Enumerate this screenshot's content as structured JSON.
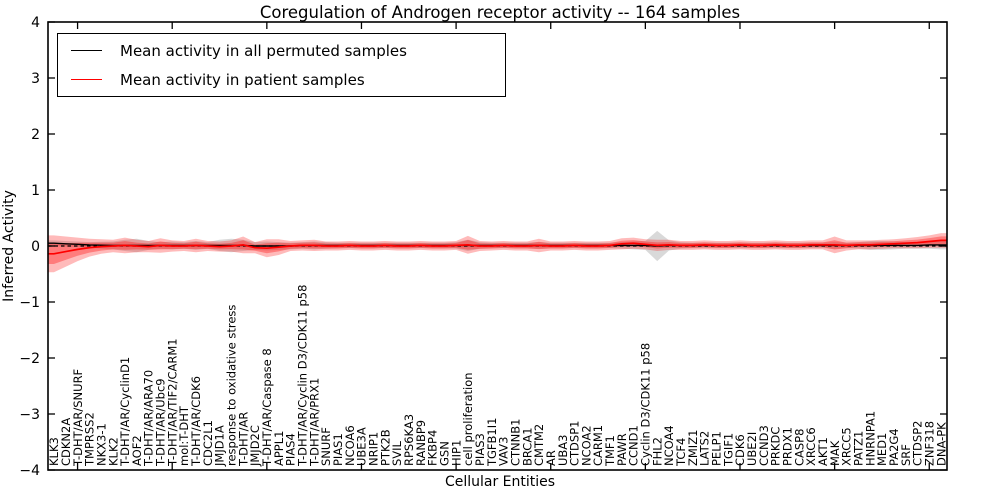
{
  "title": "Coregulation of Androgen receptor activity -- 164 samples",
  "legend": {
    "items": [
      {
        "label": "Mean activity in all permuted samples",
        "color": "#000000"
      },
      {
        "label": "Mean activity in patient samples",
        "color": "#ff0000"
      }
    ]
  },
  "axes": {
    "ylabel": "Inferred Activity",
    "xlabel": "Cellular Entities",
    "yticks": [
      4,
      3,
      2,
      1,
      0,
      -1,
      -2,
      -3,
      -4
    ],
    "ylim": [
      -4,
      4
    ]
  },
  "chart_data": {
    "type": "line",
    "title": "Coregulation of Androgen receptor activity -- 164 samples",
    "xlabel": "Cellular Entities",
    "ylabel": "Inferred Activity",
    "ylim": [
      -4,
      4
    ],
    "grid": false,
    "legend_position": "upper left",
    "zero_line": {
      "style": "dashed",
      "color": "#000000",
      "y": 0
    },
    "categories": [
      "KLK3",
      "CDKN2A",
      "T-DHT/AR/SNURF",
      "TMPRSS2",
      "NKX3-1",
      "KLK2",
      "T-DHT/AR/CyclinD1",
      "AOF2",
      "T-DHT/AR/ARA70",
      "T-DHT/AR/Ubc9",
      "T-DHT/AR/TIF2/CARM1",
      "mol:T-DHT",
      "T-DHT/AR/CDK6",
      "CDC2L1",
      "JMJD1A",
      "response to oxidative stress",
      "T-DHT/AR",
      "JMJD2C",
      "T-DHT/AR/Caspase 8",
      "APPL1",
      "PIAS4",
      "T-DHT/AR/Cyclin D3/CDK11 p58",
      "T-DHT/AR/PRX1",
      "SNURF",
      "PIAS1",
      "NCOA6",
      "UBE3A",
      "NRIP1",
      "PTK2B",
      "SVIL",
      "RPS6KA3",
      "RANBP9",
      "FKBP4",
      "GSN",
      "HIP1",
      "cell proliferation",
      "PIAS3",
      "TGFB1I1",
      "VAV3",
      "CTNNB1",
      "BRCA1",
      "CMTM2",
      "AR",
      "UBA3",
      "CTDSP1",
      "NCOA2",
      "CARM1",
      "TMF1",
      "PAWR",
      "CCND1",
      "Cyclin D3/CDK11 p58",
      "FHL2",
      "NCOA4",
      "TCF4",
      "ZMIZ1",
      "LATS2",
      "PELP1",
      "TGIF1",
      "CDK6",
      "UBE2I",
      "CCND3",
      "PRKDC",
      "PRDX1",
      "CASP8",
      "XRCC6",
      "AKT1",
      "MAK",
      "XRCC5",
      "PATZ1",
      "HNRNPA1",
      "MED1",
      "PA2G4",
      "SRF",
      "CTDSP2",
      "ZNF318",
      "DNA-PK"
    ],
    "series": [
      {
        "name": "Mean activity in all permuted samples",
        "color": "#000000",
        "values": [
          0.05,
          0.04,
          0.03,
          0.02,
          0.015,
          0.01,
          0.01,
          0.01,
          0.01,
          0.01,
          0.01,
          0.01,
          0.01,
          0.01,
          0.01,
          0.01,
          0.01,
          0.0,
          0.0,
          0.0,
          0.0,
          0.01,
          0.01,
          0.01,
          0.01,
          0.01,
          0.01,
          0.01,
          0.01,
          0.01,
          0.01,
          0.01,
          0.01,
          0.01,
          0.01,
          0.01,
          0.01,
          0.01,
          0.01,
          0.01,
          0.01,
          0.01,
          0.01,
          0.01,
          0.01,
          0.01,
          0.01,
          0.01,
          0.01,
          0.01,
          0.01,
          0.0,
          0.01,
          0.01,
          0.01,
          0.01,
          0.01,
          0.01,
          0.01,
          0.01,
          0.01,
          0.01,
          0.01,
          0.01,
          0.01,
          0.01,
          0.01,
          0.01,
          0.01,
          0.01,
          0.01,
          0.01,
          0.01,
          0.01,
          0.02,
          0.02
        ],
        "band": {
          "name": "permuted-samples-spread",
          "color": "#8a8a8a",
          "opacity": 0.32,
          "half_widths": [
            0.05,
            0.05,
            0.05,
            0.05,
            0.06,
            0.07,
            0.1,
            0.12,
            0.08,
            0.06,
            0.07,
            0.06,
            0.08,
            0.06,
            0.1,
            0.12,
            0.1,
            0.07,
            0.08,
            0.07,
            0.06,
            0.06,
            0.07,
            0.06,
            0.05,
            0.05,
            0.05,
            0.05,
            0.05,
            0.05,
            0.05,
            0.05,
            0.05,
            0.05,
            0.06,
            0.1,
            0.06,
            0.05,
            0.05,
            0.05,
            0.05,
            0.06,
            0.05,
            0.05,
            0.05,
            0.05,
            0.05,
            0.05,
            0.06,
            0.07,
            0.08,
            0.27,
            0.09,
            0.06,
            0.05,
            0.05,
            0.05,
            0.05,
            0.05,
            0.05,
            0.05,
            0.05,
            0.05,
            0.05,
            0.05,
            0.05,
            0.06,
            0.05,
            0.06,
            0.08,
            0.08,
            0.07,
            0.06,
            0.06,
            0.07,
            0.08
          ]
        }
      },
      {
        "name": "Mean activity in patient samples",
        "color": "#ff0000",
        "values": [
          -0.14,
          -0.1,
          -0.06,
          -0.03,
          -0.01,
          0.0,
          0.01,
          0.0,
          -0.01,
          0.01,
          0.0,
          0.0,
          0.01,
          0.0,
          -0.01,
          0.0,
          0.02,
          -0.03,
          -0.04,
          -0.02,
          0.0,
          0.01,
          0.01,
          0.0,
          0.0,
          0.01,
          0.0,
          0.0,
          0.01,
          0.0,
          0.0,
          0.01,
          0.0,
          0.0,
          0.01,
          0.02,
          0.0,
          0.0,
          0.01,
          0.0,
          0.0,
          0.01,
          0.0,
          0.0,
          0.01,
          0.0,
          0.0,
          0.01,
          0.04,
          0.05,
          0.03,
          0.01,
          0.02,
          0.01,
          0.01,
          0.02,
          0.01,
          0.01,
          0.02,
          0.01,
          0.01,
          0.02,
          0.01,
          0.01,
          0.02,
          0.02,
          0.02,
          0.01,
          0.02,
          0.02,
          0.03,
          0.04,
          0.05,
          0.06,
          0.08,
          0.1
        ],
        "band": {
          "name": "patient-samples-spread",
          "color": "#ff0000",
          "opacity": 0.27,
          "half_widths": [
            0.33,
            0.27,
            0.21,
            0.16,
            0.13,
            0.11,
            0.14,
            0.11,
            0.1,
            0.13,
            0.1,
            0.09,
            0.12,
            0.09,
            0.09,
            0.1,
            0.15,
            0.1,
            0.16,
            0.14,
            0.09,
            0.09,
            0.1,
            0.08,
            0.08,
            0.08,
            0.08,
            0.08,
            0.08,
            0.08,
            0.08,
            0.08,
            0.08,
            0.08,
            0.08,
            0.16,
            0.09,
            0.08,
            0.08,
            0.08,
            0.08,
            0.12,
            0.08,
            0.08,
            0.08,
            0.08,
            0.08,
            0.08,
            0.1,
            0.1,
            0.09,
            0.1,
            0.09,
            0.08,
            0.08,
            0.08,
            0.08,
            0.08,
            0.08,
            0.08,
            0.08,
            0.08,
            0.08,
            0.08,
            0.08,
            0.08,
            0.15,
            0.09,
            0.08,
            0.08,
            0.08,
            0.08,
            0.09,
            0.1,
            0.11,
            0.13
          ]
        }
      }
    ]
  }
}
